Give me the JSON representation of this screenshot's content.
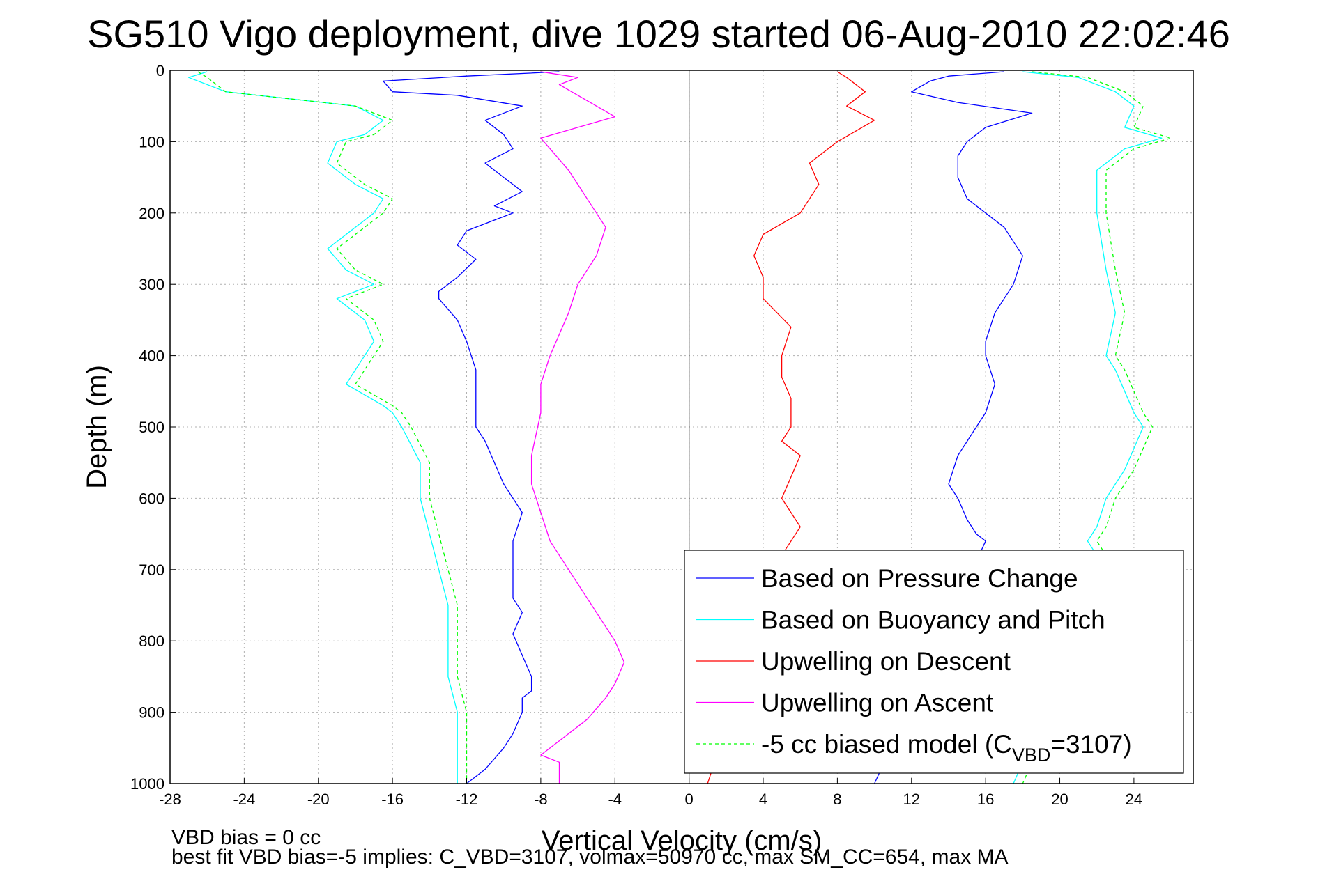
{
  "chart_data": {
    "type": "line",
    "title": "SG510 Vigo deployment, dive 1029 started 06-Aug-2010 22:02:46",
    "xlabel": "Vertical Velocity (cm/s)",
    "ylabel": "Depth (m)",
    "xlim": [
      -28,
      27.2
    ],
    "ylim": [
      0,
      1000
    ],
    "y_reversed": true,
    "grid": true,
    "x_ticks": [
      "-28",
      "-24",
      "-20",
      "-16",
      "-12",
      "-8",
      "-4",
      "0",
      "4",
      "8",
      "12",
      "16",
      "20",
      "24"
    ],
    "y_ticks": [
      "0",
      "100",
      "200",
      "300",
      "400",
      "500",
      "600",
      "700",
      "800",
      "900",
      "1000"
    ],
    "legend_position": "bottom-right",
    "series": [
      {
        "name": "Based on Pressure Change",
        "color": "#0000ff",
        "style": "solid",
        "profiles": [
          {
            "x": [
              -7,
              -12,
              -16.5,
              -16,
              -12.5,
              -9,
              -11,
              -10,
              -9.5,
              -11,
              -10,
              -9,
              -10.5,
              -9.5,
              -10.5,
              -12,
              -12.5,
              -11.5,
              -12.5,
              -13.5,
              -13.5,
              -12.5,
              -12,
              -11.5,
              -11.5,
              -11.5,
              -11,
              -10.5,
              -10,
              -9.5,
              -9,
              -9.5,
              -9.5,
              -9.5,
              -9,
              -9.5,
              -9,
              -8.5,
              -8.5,
              -9,
              -9,
              -9.5,
              -10,
              -11,
              -12
            ],
            "y": [
              2,
              8,
              15,
              30,
              35,
              50,
              70,
              90,
              110,
              130,
              150,
              170,
              190,
              200,
              210,
              225,
              245,
              265,
              290,
              310,
              320,
              350,
              380,
              420,
              460,
              500,
              520,
              550,
              580,
              600,
              620,
              660,
              700,
              740,
              760,
              790,
              820,
              850,
              870,
              880,
              900,
              930,
              950,
              980,
              1000
            ]
          },
          {
            "x": [
              17,
              14,
              13,
              12,
              14.5,
              18.5,
              16,
              15,
              14.5,
              14.5,
              15,
              16,
              17,
              17.5,
              18,
              17.5,
              16.5,
              16,
              16,
              16.5,
              16,
              15.5,
              15,
              14.5,
              14,
              14.5,
              15,
              15.5,
              16,
              10
            ],
            "y": [
              2,
              8,
              15,
              30,
              45,
              60,
              80,
              100,
              120,
              150,
              180,
              200,
              220,
              240,
              260,
              300,
              340,
              380,
              400,
              440,
              480,
              500,
              520,
              540,
              580,
              600,
              630,
              650,
              660,
              1000
            ]
          }
        ]
      },
      {
        "name": "Based on Buoyancy and Pitch",
        "color": "#00ffff",
        "style": "solid",
        "profiles": [
          {
            "x": [
              -26,
              -27,
              -25,
              -18,
              -16.5,
              -17.5,
              -19,
              -19.5,
              -18,
              -16.5,
              -17,
              -19.5,
              -18.5,
              -17,
              -19,
              -17.5,
              -17,
              -18.5,
              -16.5,
              -16,
              -15.5,
              -14.5,
              -14.5,
              -14,
              -13.5,
              -13,
              -13,
              -13,
              -12.5,
              -12.5,
              -12.5,
              -12.5
            ],
            "y": [
              2,
              10,
              30,
              50,
              70,
              90,
              100,
              130,
              160,
              180,
              200,
              250,
              280,
              300,
              320,
              350,
              380,
              440,
              470,
              480,
              500,
              550,
              600,
              650,
              700,
              750,
              800,
              850,
              900,
              950,
              980,
              1000
            ]
          },
          {
            "x": [
              18,
              21,
              23,
              24,
              23.5,
              25.5,
              23.5,
              22,
              22,
              22.5,
              23,
              22.5,
              23,
              23.5,
              24,
              24.5,
              24,
              23.5,
              22.5,
              22,
              21.5,
              22.5,
              17.5
            ],
            "y": [
              2,
              10,
              30,
              50,
              80,
              95,
              110,
              140,
              200,
              280,
              340,
              400,
              420,
              450,
              480,
              500,
              530,
              560,
              600,
              640,
              660,
              700,
              1000
            ]
          }
        ]
      },
      {
        "name": "Upwelling on Descent",
        "color": "#ff0000",
        "style": "solid",
        "profiles": [
          {
            "x": [
              8,
              8.5,
              9.5,
              8.5,
              10,
              8,
              6.5,
              7,
              6,
              4,
              3.5,
              4,
              4,
              5.5,
              5,
              5,
              5.5,
              5.5,
              5,
              6,
              5.5,
              5,
              6,
              5,
              5,
              4.5,
              1
            ],
            "y": [
              2,
              10,
              30,
              50,
              70,
              100,
              130,
              160,
              200,
              230,
              260,
              290,
              320,
              360,
              400,
              430,
              460,
              500,
              520,
              540,
              570,
              600,
              640,
              680,
              700,
              720,
              1000
            ]
          }
        ]
      },
      {
        "name": "Upwelling on Ascent",
        "color": "#ff00ff",
        "style": "solid",
        "profiles": [
          {
            "x": [
              -8,
              -6,
              -7,
              -5,
              -4,
              -6,
              -8,
              -7.5,
              -6.5,
              -5.5,
              -4.5,
              -5,
              -6,
              -6.5,
              -7,
              -7.5,
              -8,
              -8,
              -8.5,
              -8.5,
              -8,
              -7.5,
              -6.5,
              -5.5,
              -4.5,
              -4,
              -3.5,
              -4,
              -4.5,
              -5.5,
              -7,
              -8,
              -7,
              -7
            ],
            "y": [
              2,
              10,
              20,
              50,
              65,
              80,
              95,
              110,
              140,
              180,
              220,
              260,
              300,
              340,
              370,
              400,
              440,
              480,
              540,
              580,
              620,
              660,
              700,
              740,
              780,
              800,
              830,
              860,
              880,
              910,
              940,
              960,
              970,
              1000
            ]
          }
        ]
      },
      {
        "name": "-5 cc biased model (C_VBD=3107)",
        "color": "#00ff00",
        "style": "dashed",
        "profiles": [
          {
            "x": [
              -26.5,
              -26,
              -25,
              -18,
              -16,
              -17,
              -18.5,
              -19,
              -17.5,
              -16,
              -16.5,
              -19,
              -18,
              -16.5,
              -18.5,
              -17,
              -16.5,
              -18,
              -16,
              -15.5,
              -15,
              -14,
              -14,
              -13.5,
              -13,
              -12.5,
              -12.5,
              -12.5,
              -12,
              -12,
              -12,
              -12
            ],
            "y": [
              2,
              10,
              30,
              50,
              70,
              90,
              100,
              130,
              160,
              180,
              200,
              250,
              280,
              300,
              320,
              350,
              380,
              440,
              470,
              480,
              500,
              550,
              600,
              650,
              700,
              750,
              800,
              850,
              900,
              950,
              980,
              1000
            ]
          },
          {
            "x": [
              18.5,
              21.5,
              23.5,
              24.5,
              24,
              26,
              24,
              22.5,
              22.5,
              23,
              23.5,
              23,
              23.5,
              24,
              24.5,
              25,
              24.5,
              24,
              23,
              22.5,
              22,
              23,
              18
            ],
            "y": [
              2,
              10,
              30,
              50,
              80,
              95,
              110,
              140,
              200,
              280,
              340,
              400,
              420,
              450,
              480,
              500,
              530,
              560,
              600,
              640,
              660,
              700,
              1000
            ]
          }
        ]
      }
    ],
    "legend": {
      "entries": [
        {
          "text": "Based on Pressure Change",
          "color": "#0000ff",
          "style": "solid"
        },
        {
          "text": "Based on Buoyancy and Pitch",
          "color": "#00ffff",
          "style": "solid"
        },
        {
          "text": "Upwelling on Descent",
          "color": "#ff0000",
          "style": "solid"
        },
        {
          "text": "Upwelling on Ascent",
          "color": "#ff00ff",
          "style": "solid"
        },
        {
          "text": "-5 cc biased model (C",
          "sub": "VBD",
          "suffix": "=3107)",
          "color": "#00ff00",
          "style": "dashed"
        }
      ]
    },
    "annotations": {
      "line1": "VBD bias = 0 cc",
      "line2": "best fit VBD bias=-5 implies: C_VBD=3107, volmax=50970 cc, max SM_CC=654, max MA"
    }
  }
}
